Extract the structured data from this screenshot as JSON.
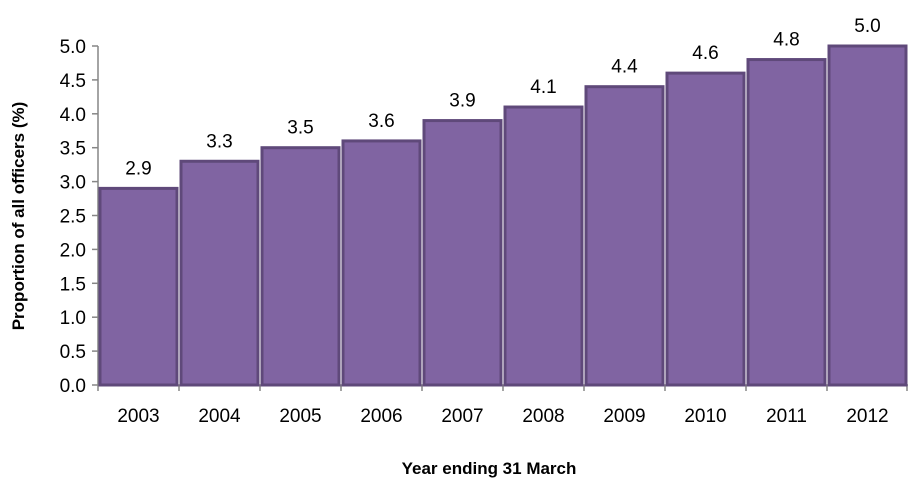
{
  "chart_data": {
    "type": "bar",
    "title": "",
    "xlabel": "Year ending 31 March",
    "ylabel": "Proportion of all officers (%)",
    "categories": [
      "2003",
      "2004",
      "2005",
      "2006",
      "2007",
      "2008",
      "2009",
      "2010",
      "2011",
      "2012"
    ],
    "values": [
      2.9,
      3.3,
      3.5,
      3.6,
      3.9,
      4.1,
      4.4,
      4.6,
      4.8,
      5.0
    ],
    "value_labels": [
      "2.9",
      "3.3",
      "3.5",
      "3.6",
      "3.9",
      "4.1",
      "4.4",
      "4.6",
      "4.8",
      "5.0"
    ],
    "ylim": [
      0,
      5
    ],
    "y_ticks": [
      "0.0",
      "0.5",
      "1.0",
      "1.5",
      "2.0",
      "2.5",
      "3.0",
      "3.5",
      "4.0",
      "4.5",
      "5.0"
    ],
    "grid": false,
    "legend": "none",
    "colors": {
      "bar_fill": "#8064A2",
      "bar_edge": "#5F497A",
      "axis": "#868686"
    }
  }
}
